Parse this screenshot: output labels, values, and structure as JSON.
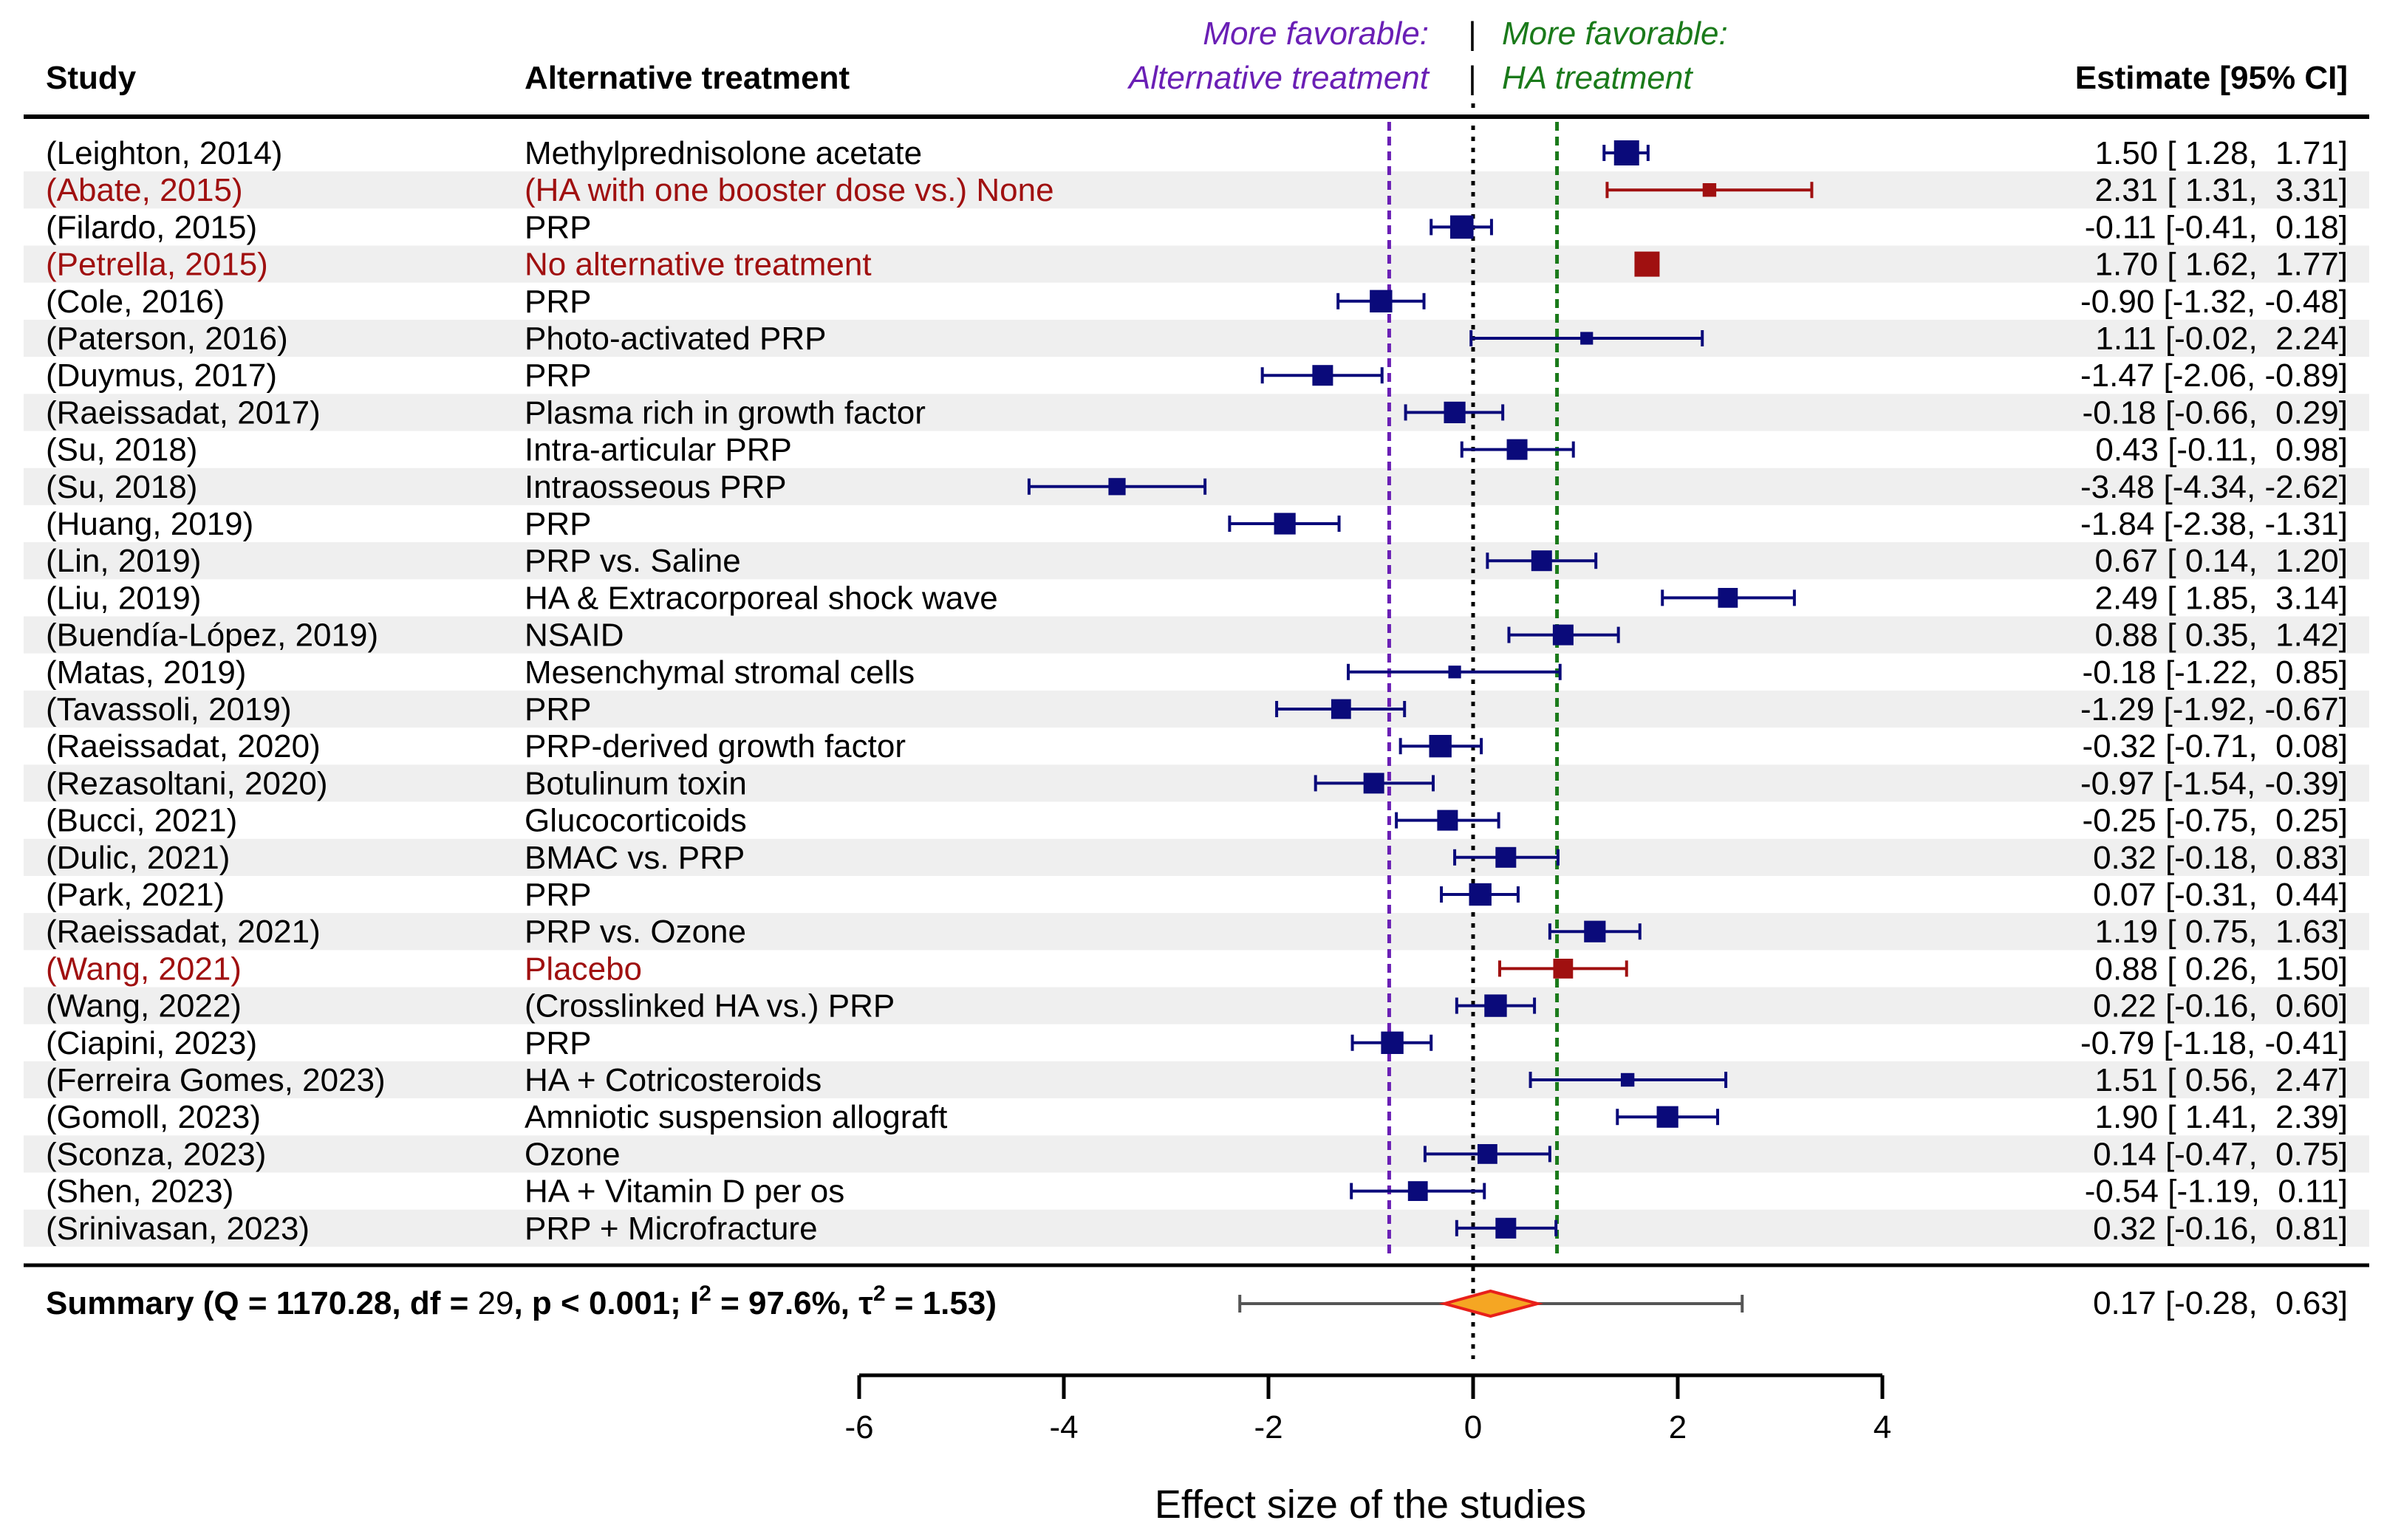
{
  "chart_data": {
    "type": "forest",
    "xlabel": "Effect size of the studies",
    "xlim": [
      -6,
      4
    ],
    "xticks": [
      -6,
      -4,
      -2,
      0,
      2,
      4
    ],
    "reference_lines": [
      {
        "value": 0,
        "style": "dotted",
        "color": "#000000"
      },
      {
        "value": -0.82,
        "style": "dashed",
        "color": "#6a1fb5"
      },
      {
        "value": 0.82,
        "style": "dashed",
        "color": "#1a7a1a"
      }
    ],
    "headers": {
      "study": "Study",
      "treatment": "Alternative treatment",
      "estimate": "Estimate [95% CI]"
    },
    "favor_left": {
      "line1": "More favorable:",
      "line2": "Alternative treatment",
      "color": "#6a1fb5"
    },
    "favor_right": {
      "line1": "More favorable:",
      "line2": "HA treatment",
      "color": "#1a7a1a"
    },
    "favor_separator": "|",
    "colors": {
      "normal": "#0a0a7a",
      "highlight": "#a01010",
      "stripe": "#efefef",
      "summary_fill": "#f5a623",
      "summary_stroke": "#e8201a",
      "summary_ci": "#555555"
    },
    "studies": [
      {
        "study": "(Leighton, 2014)",
        "treatment": "Methylprednisolone acetate",
        "est": 1.5,
        "lo": 1.28,
        "hi": 1.71,
        "ci_text": "1.50 [ 1.28,  1.71]",
        "weight": 1.0,
        "highlight": false
      },
      {
        "study": "(Abate, 2015)",
        "treatment": "(HA with one booster dose vs.) None",
        "est": 2.31,
        "lo": 1.31,
        "hi": 3.31,
        "ci_text": "2.31 [ 1.31,  3.31]",
        "weight": 0.35,
        "highlight": true
      },
      {
        "study": "(Filardo, 2015)",
        "treatment": "PRP",
        "est": -0.11,
        "lo": -0.41,
        "hi": 0.18,
        "ci_text": "-0.11 [-0.41,  0.18]",
        "weight": 0.9,
        "highlight": false
      },
      {
        "study": "(Petrella, 2015)",
        "treatment": "No alternative treatment",
        "est": 1.7,
        "lo": 1.62,
        "hi": 1.77,
        "ci_text": "1.70 [ 1.62,  1.77]",
        "weight": 1.0,
        "highlight": true
      },
      {
        "study": "(Cole, 2016)",
        "treatment": "PRP",
        "est": -0.9,
        "lo": -1.32,
        "hi": -0.48,
        "ci_text": "-0.90 [-1.32, -0.48]",
        "weight": 0.85,
        "highlight": false
      },
      {
        "study": "(Paterson, 2016)",
        "treatment": "Photo-activated PRP",
        "est": 1.11,
        "lo": -0.02,
        "hi": 2.24,
        "ci_text": "1.11 [-0.02,  2.24]",
        "weight": 0.3,
        "highlight": false
      },
      {
        "study": "(Duymus, 2017)",
        "treatment": "PRP",
        "est": -1.47,
        "lo": -2.06,
        "hi": -0.89,
        "ci_text": "-1.47 [-2.06, -0.89]",
        "weight": 0.75,
        "highlight": false
      },
      {
        "study": "(Raeissadat, 2017)",
        "treatment": "Plasma rich in growth factor",
        "est": -0.18,
        "lo": -0.66,
        "hi": 0.29,
        "ci_text": "-0.18 [-0.66,  0.29]",
        "weight": 0.8,
        "highlight": false
      },
      {
        "study": "(Su, 2018)",
        "treatment": "Intra-articular PRP",
        "est": 0.43,
        "lo": -0.11,
        "hi": 0.98,
        "ci_text": "0.43 [-0.11,  0.98]",
        "weight": 0.75,
        "highlight": false
      },
      {
        "study": "(Su, 2018)",
        "treatment": "Intraosseous PRP",
        "est": -3.48,
        "lo": -4.34,
        "hi": -2.62,
        "ci_text": "-3.48 [-4.34, -2.62]",
        "weight": 0.55,
        "highlight": false
      },
      {
        "study": "(Huang, 2019)",
        "treatment": "PRP",
        "est": -1.84,
        "lo": -2.38,
        "hi": -1.31,
        "ci_text": "-1.84 [-2.38, -1.31]",
        "weight": 0.8,
        "highlight": false
      },
      {
        "study": "(Lin, 2019)",
        "treatment": "PRP vs. Saline",
        "est": 0.67,
        "lo": 0.14,
        "hi": 1.2,
        "ci_text": "0.67 [ 0.14,  1.20]",
        "weight": 0.75,
        "highlight": false
      },
      {
        "study": "(Liu, 2019)",
        "treatment": "HA & Extracorporeal shock wave",
        "est": 2.49,
        "lo": 1.85,
        "hi": 3.14,
        "ci_text": "2.49 [ 1.85,  3.14]",
        "weight": 0.7,
        "highlight": false
      },
      {
        "study": "(Buendía-López, 2019)",
        "treatment": "NSAID",
        "est": 0.88,
        "lo": 0.35,
        "hi": 1.42,
        "ci_text": "0.88 [ 0.35,  1.42]",
        "weight": 0.75,
        "highlight": false
      },
      {
        "study": "(Matas, 2019)",
        "treatment": "Mesenchymal stromal cells",
        "est": -0.18,
        "lo": -1.22,
        "hi": 0.85,
        "ci_text": "-0.18 [-1.22,  0.85]",
        "weight": 0.3,
        "highlight": false
      },
      {
        "study": "(Tavassoli, 2019)",
        "treatment": "PRP",
        "est": -1.29,
        "lo": -1.92,
        "hi": -0.67,
        "ci_text": "-1.29 [-1.92, -0.67]",
        "weight": 0.7,
        "highlight": false
      },
      {
        "study": "(Raeissadat, 2020)",
        "treatment": "PRP-derived growth factor",
        "est": -0.32,
        "lo": -0.71,
        "hi": 0.08,
        "ci_text": "-0.32 [-0.71,  0.08]",
        "weight": 0.85,
        "highlight": false
      },
      {
        "study": "(Rezasoltani, 2020)",
        "treatment": "Botulinum toxin",
        "est": -0.97,
        "lo": -1.54,
        "hi": -0.39,
        "ci_text": "-0.97 [-1.54, -0.39]",
        "weight": 0.75,
        "highlight": false
      },
      {
        "study": "(Bucci, 2021)",
        "treatment": "Glucocorticoids",
        "est": -0.25,
        "lo": -0.75,
        "hi": 0.25,
        "ci_text": "-0.25 [-0.75,  0.25]",
        "weight": 0.75,
        "highlight": false
      },
      {
        "study": "(Dulic, 2021)",
        "treatment": "BMAC vs. PRP",
        "est": 0.32,
        "lo": -0.18,
        "hi": 0.83,
        "ci_text": "0.32 [-0.18,  0.83]",
        "weight": 0.75,
        "highlight": false
      },
      {
        "study": "(Park, 2021)",
        "treatment": "PRP",
        "est": 0.07,
        "lo": -0.31,
        "hi": 0.44,
        "ci_text": "0.07 [-0.31,  0.44]",
        "weight": 0.85,
        "highlight": false
      },
      {
        "study": "(Raeissadat, 2021)",
        "treatment": "PRP vs. Ozone",
        "est": 1.19,
        "lo": 0.75,
        "hi": 1.63,
        "ci_text": "1.19 [ 0.75,  1.63]",
        "weight": 0.8,
        "highlight": false
      },
      {
        "study": "(Wang, 2021)",
        "treatment": "Placebo",
        "est": 0.88,
        "lo": 0.26,
        "hi": 1.5,
        "ci_text": "0.88 [ 0.26,  1.50]",
        "weight": 0.7,
        "highlight": true
      },
      {
        "study": "(Wang, 2022)",
        "treatment": "(Crosslinked HA vs.) PRP",
        "est": 0.22,
        "lo": -0.16,
        "hi": 0.6,
        "ci_text": "0.22 [-0.16,  0.60]",
        "weight": 0.85,
        "highlight": false
      },
      {
        "study": "(Ciapini, 2023)",
        "treatment": "PRP",
        "est": -0.79,
        "lo": -1.18,
        "hi": -0.41,
        "ci_text": "-0.79 [-1.18, -0.41]",
        "weight": 0.85,
        "highlight": false
      },
      {
        "study": "(Ferreira Gomes, 2023)",
        "treatment": "HA + Cotricosteroids",
        "est": 1.51,
        "lo": 0.56,
        "hi": 2.47,
        "ci_text": "1.51 [ 0.56,  2.47]",
        "weight": 0.35,
        "highlight": false
      },
      {
        "study": "(Gomoll, 2023)",
        "treatment": "Amniotic suspension allograft",
        "est": 1.9,
        "lo": 1.41,
        "hi": 2.39,
        "ci_text": "1.90 [ 1.41,  2.39]",
        "weight": 0.8,
        "highlight": false
      },
      {
        "study": "(Sconza, 2023)",
        "treatment": "Ozone",
        "est": 0.14,
        "lo": -0.47,
        "hi": 0.75,
        "ci_text": "0.14 [-0.47,  0.75]",
        "weight": 0.7,
        "highlight": false
      },
      {
        "study": "(Shen, 2023)",
        "treatment": "HA + Vitamin D per os",
        "est": -0.54,
        "lo": -1.19,
        "hi": 0.11,
        "ci_text": "-0.54 [-1.19,  0.11]",
        "weight": 0.7,
        "highlight": false
      },
      {
        "study": "(Srinivasan, 2023)",
        "treatment": "PRP + Microfracture",
        "est": 0.32,
        "lo": -0.16,
        "hi": 0.81,
        "ci_text": "0.32 [-0.16,  0.81]",
        "weight": 0.75,
        "highlight": false
      }
    ],
    "summary": {
      "label_bold1": "Summary (Q = 1170.28, df = ",
      "df": "29",
      "label_bold2": ", p < 0.001; I",
      "label_sup1": "2",
      "label_bold3": " = 97.6%, τ",
      "label_sup2": "2",
      "label_bold4": " = 1.53)",
      "est": 0.17,
      "lo": -0.28,
      "hi": 0.63,
      "pi_lo": -2.28,
      "pi_hi": 2.63,
      "ci_text": "0.17 [-0.28,  0.63]"
    }
  }
}
